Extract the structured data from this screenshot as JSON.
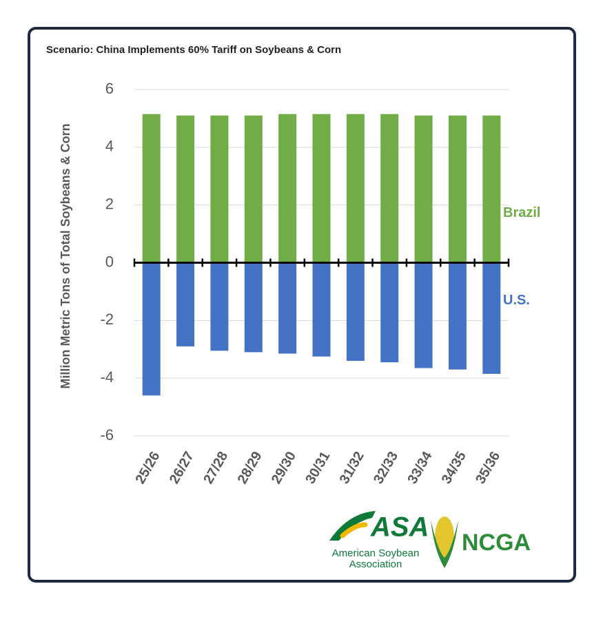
{
  "chart_data": {
    "type": "bar",
    "title": "Scenario: China Implements 60% Tariff on Soybeans & Corn",
    "y_label": "Million Metric Tons of Total Soybeans & Corn",
    "categories": [
      "25/26",
      "26/27",
      "27/28",
      "28/29",
      "29/30",
      "30/31",
      "31/32",
      "32/33",
      "33/34",
      "34/35",
      "35/36"
    ],
    "series": [
      {
        "name": "Brazil",
        "color": "#70ad47",
        "values": [
          5.15,
          5.1,
          5.1,
          5.1,
          5.15,
          5.15,
          5.15,
          5.15,
          5.1,
          5.1,
          5.1
        ]
      },
      {
        "name": "U.S.",
        "color": "#4472c4",
        "values": [
          -4.6,
          -2.9,
          -3.05,
          -3.1,
          -3.15,
          -3.25,
          -3.4,
          -3.45,
          -3.65,
          -3.7,
          -3.85
        ]
      }
    ],
    "ylim": [
      -6,
      6
    ],
    "yticks": [
      -6,
      -4,
      -2,
      0,
      2,
      4,
      6
    ],
    "grid": true
  },
  "logos": {
    "asa": "ASA",
    "asa_line1": "American Soybean",
    "asa_line2": "Association",
    "ncga": "NCGA"
  }
}
